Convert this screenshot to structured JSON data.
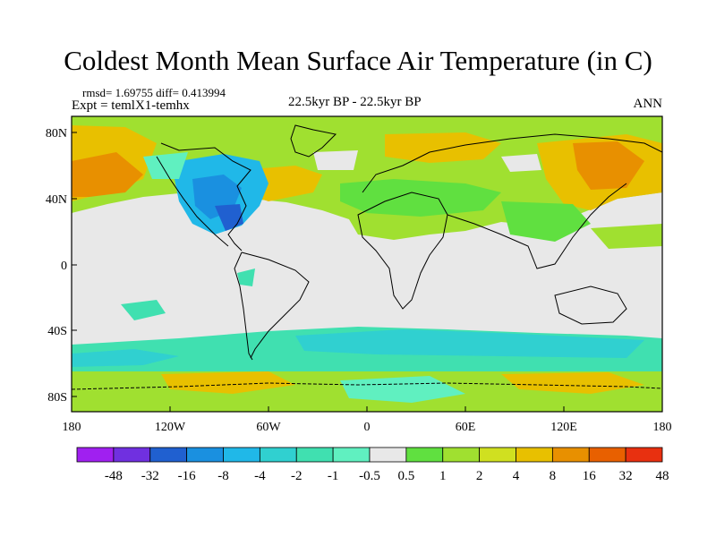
{
  "header": {
    "title": "Coldest Month Mean Surface Air Temperature (in C)",
    "stats": "rmsd= 1.69755 diff= 0.413994",
    "experiment": "Expt = temlX1-temhx",
    "period": "22.5kyr BP - 22.5kyr BP",
    "season": "ANN"
  },
  "axes": {
    "y_ticks": [
      "80N",
      "40N",
      "0",
      "40S",
      "80S"
    ],
    "x_ticks": [
      "180",
      "120W",
      "60W",
      "0",
      "60E",
      "120E",
      "180"
    ]
  },
  "colorbar": {
    "labels": [
      "-48",
      "-32",
      "-16",
      "-8",
      "-4",
      "-2",
      "-1",
      "-0.5",
      "0.5",
      "1",
      "2",
      "4",
      "8",
      "16",
      "32",
      "48"
    ],
    "colors": [
      "#a020f0",
      "#7030e0",
      "#2060d0",
      "#1a90e0",
      "#20b8e8",
      "#30d0d0",
      "#40e0b0",
      "#60f0c0",
      "#e8e8e8",
      "#60e040",
      "#a0e030",
      "#d0e020",
      "#e8c000",
      "#e89000",
      "#e86000",
      "#e83010"
    ]
  }
}
